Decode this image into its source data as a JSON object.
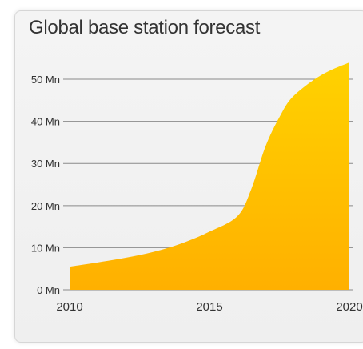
{
  "chart": {
    "title": "Global base station forecast"
  },
  "colors": {
    "area_top": "#ffd200",
    "area_bottom": "#ffb000",
    "grid": "#8a8a8a",
    "text": "#333333"
  },
  "chart_data": {
    "type": "area",
    "title": "Global base station forecast",
    "xlabel": "",
    "ylabel": "",
    "x": [
      2010,
      2011,
      2012,
      2013,
      2014,
      2015,
      2016,
      2016.5,
      2017,
      2017.5,
      2018,
      2019,
      2020
    ],
    "values": [
      5.5,
      6.5,
      7.6,
      9.0,
      11.0,
      13.8,
      17.5,
      24.0,
      34.0,
      41.0,
      46.0,
      51.0,
      54.0
    ],
    "xlim": [
      2010,
      2020
    ],
    "ylim": [
      0,
      54
    ],
    "y_ticks": [
      {
        "value": 0,
        "label": "0 Mn"
      },
      {
        "value": 10,
        "label": "10 Mn"
      },
      {
        "value": 20,
        "label": "20 Mn"
      },
      {
        "value": 30,
        "label": "30 Mn"
      },
      {
        "value": 40,
        "label": "40 Mn"
      },
      {
        "value": 50,
        "label": "50 Mn"
      }
    ],
    "x_ticks": [
      {
        "value": 2010,
        "label": "2010"
      },
      {
        "value": 2015,
        "label": "2015"
      },
      {
        "value": 2020,
        "label": "2020"
      }
    ],
    "grid": true,
    "legend": "none"
  }
}
